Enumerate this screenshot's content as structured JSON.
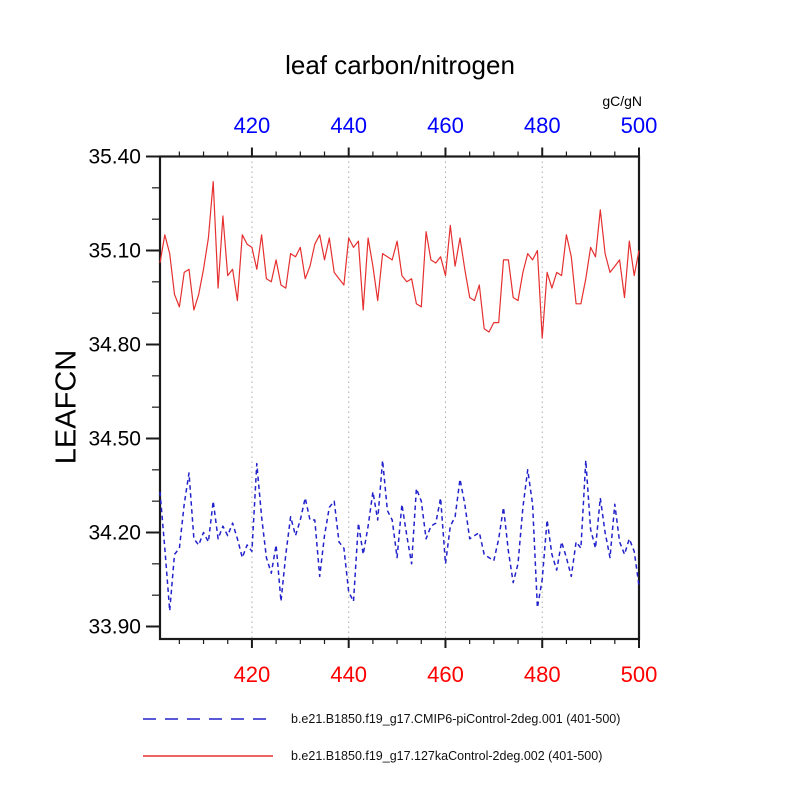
{
  "title": "leaf carbon/nitrogen",
  "axes": {
    "top": {
      "unit_label": "gC/gN",
      "tick_labels": [
        "420",
        "440",
        "460",
        "480",
        "500"
      ],
      "color": "#0000ff"
    },
    "bottom": {
      "tick_labels": [
        "420",
        "440",
        "460",
        "480",
        "500"
      ],
      "color": "#ff0000"
    },
    "left": {
      "label": "LEAFCN",
      "tick_labels": [
        "35.40",
        "35.10",
        "34.80",
        "34.50",
        "34.20",
        "33.90"
      ],
      "color": "#000000"
    }
  },
  "colors": {
    "box": "#1a1a1a",
    "gridline": "#ababab",
    "series_blue": "#2222cc",
    "series_red": "#e63030"
  },
  "chart_data": {
    "type": "line",
    "title": "leaf carbon/nitrogen",
    "ylabel": "LEAFCN",
    "x_unit_label": "gC/gN",
    "xlim": [
      401,
      500
    ],
    "ylim": [
      33.86,
      35.4
    ],
    "y_major_ticks": [
      33.9,
      34.2,
      34.5,
      34.8,
      35.1,
      35.4
    ],
    "y_minor_step": 0.1,
    "x_major_ticks": [
      420,
      440,
      460,
      480,
      500
    ],
    "x_minor_step": 5,
    "x_gridlines": [
      420,
      440,
      460,
      480
    ],
    "grid_style": "dotted",
    "legend_position": "bottom",
    "x_start": 401,
    "x_step": 1,
    "series": [
      {
        "name": "b.e21.B1850.f19_g17.CMIP6-piControl-2deg.001 (401-500)",
        "color": "#2222cc",
        "line_style": "dashed",
        "values": [
          34.33,
          34.15,
          33.95,
          34.13,
          34.15,
          34.29,
          34.39,
          34.18,
          34.16,
          34.2,
          34.17,
          34.3,
          34.18,
          34.22,
          34.19,
          34.23,
          34.18,
          34.12,
          34.16,
          34.14,
          34.42,
          34.25,
          34.12,
          34.07,
          34.16,
          33.98,
          34.13,
          34.25,
          34.19,
          34.24,
          34.31,
          34.24,
          34.24,
          34.06,
          34.19,
          34.28,
          34.3,
          34.17,
          34.15,
          34.01,
          33.98,
          34.23,
          34.13,
          34.22,
          34.33,
          34.24,
          34.43,
          34.27,
          34.24,
          34.12,
          34.29,
          34.19,
          34.1,
          34.34,
          34.3,
          34.18,
          34.22,
          34.23,
          34.31,
          34.1,
          34.22,
          34.25,
          34.37,
          34.29,
          34.18,
          34.19,
          34.2,
          34.13,
          34.12,
          34.11,
          34.18,
          34.28,
          34.14,
          34.04,
          34.1,
          34.28,
          34.4,
          34.29,
          33.96,
          34.05,
          34.24,
          34.13,
          34.08,
          34.17,
          34.12,
          34.06,
          34.17,
          34.15,
          34.43,
          34.21,
          34.15,
          34.31,
          34.2,
          34.12,
          34.29,
          34.17,
          34.13,
          34.18,
          34.14,
          34.03
        ]
      },
      {
        "name": "b.e21.B1850.f19_g17.127kaControl-2deg.002 (401-500)",
        "color": "#e63030",
        "line_style": "solid",
        "values": [
          35.06,
          35.15,
          35.09,
          34.96,
          34.92,
          35.03,
          35.04,
          34.91,
          34.96,
          35.04,
          35.14,
          35.32,
          34.98,
          35.21,
          35.02,
          35.04,
          34.94,
          35.15,
          35.12,
          35.11,
          35.04,
          35.15,
          35.01,
          35.0,
          35.07,
          34.99,
          34.98,
          35.09,
          35.08,
          35.11,
          35.01,
          35.05,
          35.12,
          35.15,
          35.07,
          35.14,
          35.03,
          35.01,
          34.99,
          35.14,
          35.11,
          35.13,
          34.91,
          35.14,
          35.05,
          34.94,
          35.09,
          35.08,
          35.07,
          35.13,
          35.02,
          35.0,
          35.01,
          34.93,
          34.92,
          35.16,
          35.07,
          35.06,
          35.08,
          35.02,
          35.18,
          35.05,
          35.14,
          35.04,
          34.95,
          34.94,
          34.99,
          34.85,
          34.84,
          34.87,
          34.87,
          35.07,
          35.07,
          34.95,
          34.94,
          35.03,
          35.09,
          35.07,
          35.1,
          34.82,
          35.03,
          34.98,
          35.03,
          35.02,
          35.15,
          35.08,
          34.93,
          34.93,
          35.01,
          35.11,
          35.08,
          35.23,
          35.09,
          35.03,
          35.05,
          35.07,
          34.95,
          35.13,
          35.02,
          35.1
        ]
      }
    ]
  }
}
